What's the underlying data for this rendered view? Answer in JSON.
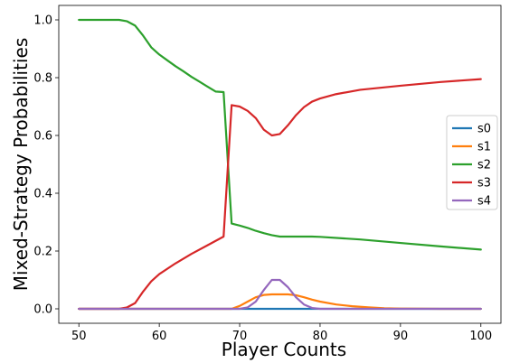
{
  "chart_data": {
    "type": "line",
    "title": "",
    "xlabel": "Player Counts",
    "ylabel": "Mixed-Strategy Probabilities",
    "xlim": [
      47.5,
      102.5
    ],
    "ylim": [
      -0.05,
      1.05
    ],
    "xticks": [
      50,
      60,
      70,
      80,
      90,
      100
    ],
    "xtick_labels": [
      "50",
      "60",
      "70",
      "80",
      "90",
      "100"
    ],
    "yticks": [
      0.0,
      0.2,
      0.4,
      0.6,
      0.8,
      1.0
    ],
    "ytick_labels": [
      "0.0",
      "0.2",
      "0.4",
      "0.6",
      "0.8",
      "1.0"
    ],
    "grid": false,
    "legend_position": "center-right",
    "series": [
      {
        "name": "s0",
        "color": "#1f77b4",
        "x": [
          50,
          55,
          60,
          65,
          70,
          75,
          80,
          85,
          90,
          95,
          100
        ],
        "y": [
          0,
          0,
          0,
          0,
          0,
          0,
          0,
          0,
          0,
          0,
          0
        ]
      },
      {
        "name": "s1",
        "color": "#ff7f0e",
        "x": [
          50,
          60,
          68,
          69,
          70,
          71,
          72,
          73,
          74,
          75,
          76,
          77,
          78,
          79,
          80,
          82,
          84,
          86,
          88,
          90,
          95,
          100
        ],
        "y": [
          0,
          0,
          0,
          0,
          0.01,
          0.025,
          0.04,
          0.048,
          0.05,
          0.05,
          0.05,
          0.047,
          0.04,
          0.032,
          0.025,
          0.015,
          0.009,
          0.005,
          0.002,
          0.001,
          0,
          0
        ]
      },
      {
        "name": "s2",
        "color": "#2ca02c",
        "x": [
          50,
          51,
          52,
          53,
          54,
          55,
          56,
          57,
          58,
          59,
          60,
          61,
          62,
          63,
          64,
          65,
          66,
          67,
          68,
          69,
          70,
          71,
          72,
          73,
          74,
          75,
          76,
          77,
          78,
          79,
          80,
          85,
          90,
          95,
          100
        ],
        "y": [
          1.0,
          1.0,
          1.0,
          1.0,
          1.0,
          1.0,
          0.995,
          0.98,
          0.945,
          0.905,
          0.88,
          0.86,
          0.84,
          0.822,
          0.803,
          0.786,
          0.769,
          0.752,
          0.75,
          0.295,
          0.288,
          0.28,
          0.27,
          0.262,
          0.255,
          0.25,
          0.25,
          0.25,
          0.25,
          0.25,
          0.249,
          0.24,
          0.228,
          0.216,
          0.205
        ]
      },
      {
        "name": "s3",
        "color": "#d62728",
        "x": [
          50,
          55,
          56,
          57,
          58,
          59,
          60,
          62,
          64,
          66,
          68,
          69,
          70,
          71,
          72,
          73,
          74,
          75,
          76,
          77,
          78,
          79,
          80,
          82,
          85,
          90,
          95,
          100
        ],
        "y": [
          0,
          0,
          0.005,
          0.02,
          0.06,
          0.095,
          0.12,
          0.157,
          0.19,
          0.22,
          0.25,
          0.705,
          0.7,
          0.685,
          0.66,
          0.62,
          0.6,
          0.605,
          0.635,
          0.67,
          0.698,
          0.717,
          0.728,
          0.743,
          0.758,
          0.772,
          0.785,
          0.795
        ]
      },
      {
        "name": "s4",
        "color": "#9467bd",
        "x": [
          50,
          60,
          70,
          71,
          72,
          73,
          74,
          75,
          76,
          77,
          78,
          79,
          80,
          85,
          90,
          100
        ],
        "y": [
          0,
          0,
          0,
          0.005,
          0.025,
          0.065,
          0.1,
          0.1,
          0.075,
          0.04,
          0.015,
          0.003,
          0,
          0,
          0,
          0
        ]
      }
    ]
  }
}
